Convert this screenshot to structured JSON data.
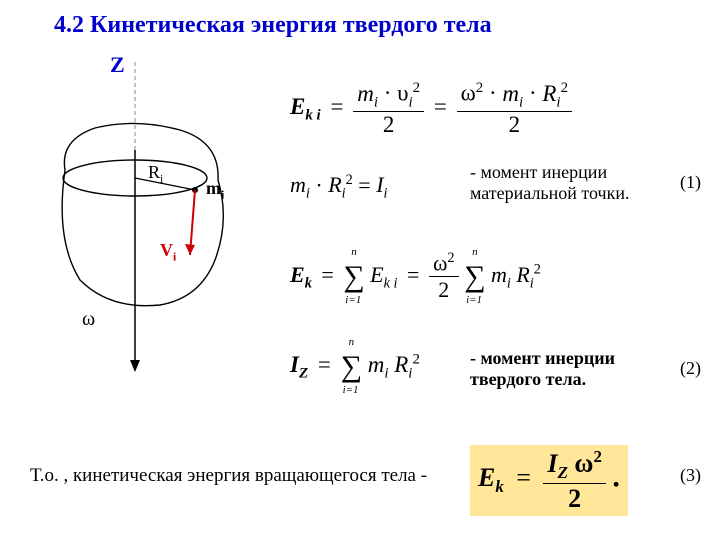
{
  "title": "4.2  Кинетическая энергия твердого тела",
  "diagram": {
    "z_label": "Z",
    "r_label_html": "R<sub>i</sub>",
    "m_label_html": "m<sub>i</sub>",
    "v_label_html": "V<sub>i</sub>",
    "omega_label": "ω",
    "axis_color": "#000000",
    "dash_color": "#888888",
    "body_stroke": "#000000",
    "m_dot_color": "#000000",
    "v_arrow_color": "#cc0000",
    "z_label_color": "#0000cc"
  },
  "equations": {
    "ek_i": {
      "lhs": "E",
      "lhs_sub": "k i",
      "num1_html": "<i>m<sub>i</sub></i> · υ<sub><i>i</i></sub><sup>2</sup>",
      "den": "2",
      "num2_html": "ω<sup>2</sup> · <i>m<sub>i</sub></i> · <i>R<sub>i</sub></i><sup>2</sup>"
    },
    "moment_i": {
      "lhs_html": "<i>m<sub>i</sub></i> · <i>R<sub>i</sub></i><sup>2</sup> = <i>I<sub>i</sub></i>",
      "caption": "- момент инерции материальной точки.",
      "eqnum": "(1)"
    },
    "ek_sum": {
      "lhs": "E",
      "lhs_sub": "k",
      "sum_lower": "i=1",
      "sum_upper": "n",
      "term1_html": "<i>E<sub>k i</sub></i>",
      "num_html": "ω<sup>2</sup>",
      "den": "2",
      "term2_html": "<i>m<sub>i</sub> R<sub>i</sub></i><sup>2</sup>"
    },
    "iz": {
      "lhs_html": "<b><i>I<sub>Z</sub></i></b>",
      "sum_lower": "i=1",
      "sum_upper": "n",
      "term_html": "<i>m<sub>i</sub> R<sub>i</sub></i><sup>2</sup>",
      "caption": "- момент инерции твердого тела.",
      "eqnum": "(2)"
    },
    "final": {
      "prefix": "Т.о. , кинетическая энергия вращающегося тела -",
      "lhs": "E",
      "lhs_sub": "k",
      "num_html": "<i>I<sub>Z</sub></i> ω<sup>2</sup>",
      "den": "2",
      "eqnum": "(3)"
    }
  },
  "style": {
    "title_color": "#0000cc",
    "title_fontsize": 24,
    "eq_fontsize": 22,
    "caption_fontsize": 18,
    "highlight_bg": "#ffe699",
    "background": "#ffffff"
  }
}
